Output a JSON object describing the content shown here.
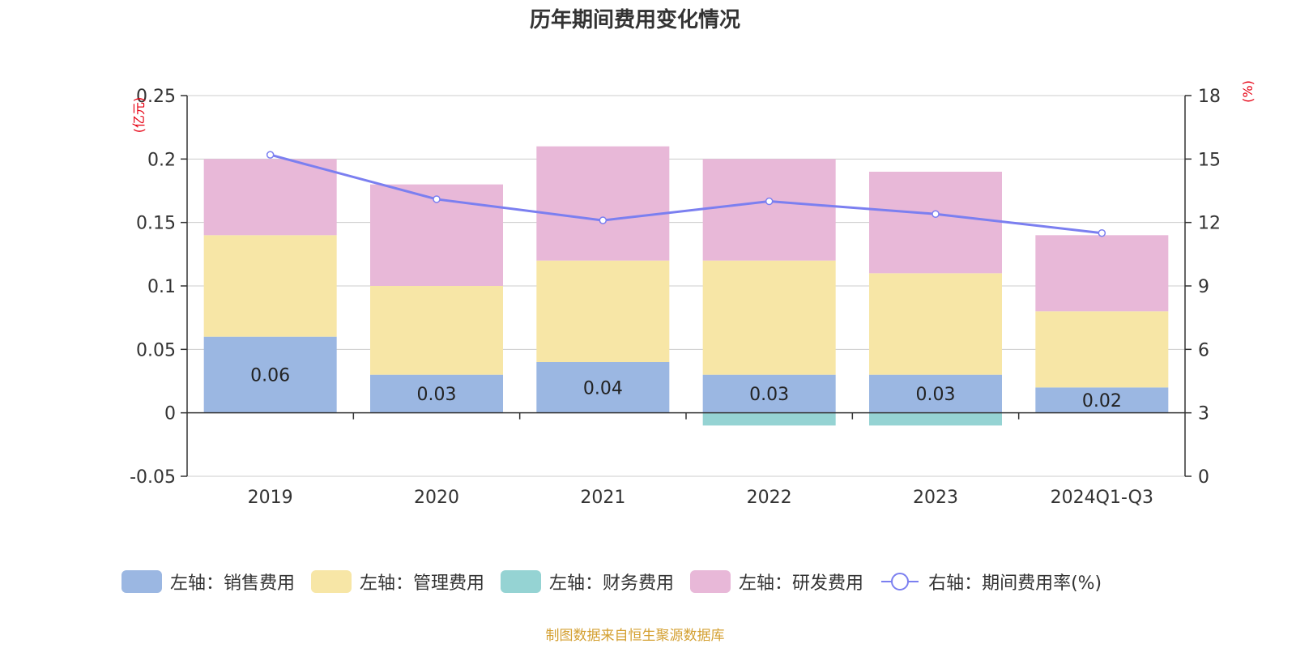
{
  "title": "历年期间费用变化情况",
  "source_note": "制图数据来自恒生聚源数据库",
  "colors": {
    "sales": "#9bb7e2",
    "admin": "#f7e6a6",
    "finance": "#95d3d3",
    "rnd": "#e8b8d8",
    "line": "#7b7ff0",
    "axis_unit": "#e60012"
  },
  "legend": [
    {
      "label": "左轴：销售费用",
      "color": "#9bb7e2",
      "kind": "bar"
    },
    {
      "label": "左轴：管理费用",
      "color": "#f7e6a6",
      "kind": "bar"
    },
    {
      "label": "左轴：财务费用",
      "color": "#95d3d3",
      "kind": "bar"
    },
    {
      "label": "左轴：研发费用",
      "color": "#e8b8d8",
      "kind": "bar"
    },
    {
      "label": "右轴：期间费用率(%)",
      "color": "#7b7ff0",
      "kind": "line"
    }
  ],
  "chart_data": {
    "type": "bar",
    "title": "历年期间费用变化情况",
    "categories": [
      "2019",
      "2020",
      "2021",
      "2022",
      "2023",
      "2024Q1-Q3"
    ],
    "left_axis": {
      "unit_label": "(亿元)",
      "ylim": [
        -0.05,
        0.25
      ],
      "ticks": [
        -0.05,
        0,
        0.05,
        0.1,
        0.15,
        0.2,
        0.25
      ],
      "tick_labels": [
        "-0.05",
        "0",
        "0.05",
        "0.1",
        "0.15",
        "0.2",
        "0.25"
      ]
    },
    "right_axis": {
      "unit_label": "(%)",
      "ylim": [
        0,
        18
      ],
      "ticks": [
        0,
        3,
        6,
        9,
        12,
        15,
        18
      ],
      "tick_labels": [
        "0",
        "3",
        "6",
        "9",
        "12",
        "15",
        "18"
      ]
    },
    "stacked": true,
    "grid": true,
    "legend_position": "bottom",
    "series": [
      {
        "name": "左轴：销售费用",
        "axis": "left",
        "values": [
          0.06,
          0.03,
          0.04,
          0.03,
          0.03,
          0.02
        ],
        "data_labels": [
          "0.06",
          "0.03",
          "0.04",
          "0.03",
          "0.03",
          "0.02"
        ]
      },
      {
        "name": "左轴：管理费用",
        "axis": "left",
        "values": [
          0.08,
          0.07,
          0.08,
          0.09,
          0.08,
          0.06
        ]
      },
      {
        "name": "左轴：财务费用",
        "axis": "left",
        "values": [
          0.0,
          0.0,
          0.0,
          -0.01,
          -0.01,
          0.0
        ]
      },
      {
        "name": "左轴：研发费用",
        "axis": "left",
        "values": [
          0.06,
          0.08,
          0.09,
          0.08,
          0.08,
          0.06
        ]
      },
      {
        "name": "右轴：期间费用率(%)",
        "axis": "right",
        "type": "line",
        "values": [
          15.2,
          13.1,
          12.1,
          13.0,
          12.4,
          11.5
        ]
      }
    ]
  }
}
